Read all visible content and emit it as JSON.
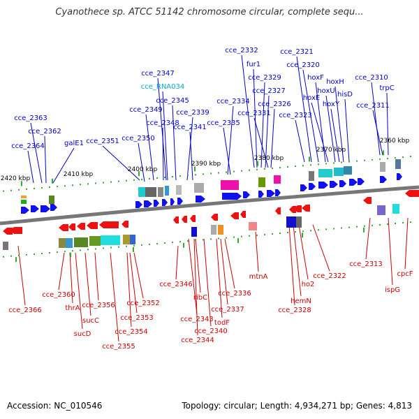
{
  "title": "Cyanothece sp. ATCC 51142 chromosome circular, complete sequ...",
  "footer": {
    "accession": "Accession: NC_010546",
    "summary": "Topology: circular; Length: 4,934,271 bp; Genes: 4,813"
  },
  "colors": {
    "top_label": "#0000cc",
    "rna_label": "#00aacc",
    "bottom_label": "#cc0000",
    "forward_gene": "#1111ee",
    "reverse_gene": "#ee1111",
    "backbone": "#777777",
    "tick": "#33aa33"
  },
  "scale_ticks": [
    {
      "label": "2420 kbp"
    },
    {
      "label": "2410 kbp"
    },
    {
      "label": "2400 kbp"
    },
    {
      "label": "2390 kbp"
    },
    {
      "label": "2380 kbp"
    },
    {
      "label": "2370 kbp"
    },
    {
      "label": "2360 kbp"
    }
  ],
  "top_labels": [
    {
      "text": "cce_2363"
    },
    {
      "text": "cce_2362"
    },
    {
      "text": "cce_2364"
    },
    {
      "text": "galE1"
    },
    {
      "text": "cce_2351"
    },
    {
      "text": "cce_2350"
    },
    {
      "text": "cce_2349"
    },
    {
      "text": "cce_2348"
    },
    {
      "text": "cce_2347"
    },
    {
      "text": "cce_RNA034"
    },
    {
      "text": "cce_2345"
    },
    {
      "text": "cce_2339"
    },
    {
      "text": "cce_2341"
    },
    {
      "text": "cce_2334"
    },
    {
      "text": "cce_2335"
    },
    {
      "text": "cce_2332"
    },
    {
      "text": "fur1"
    },
    {
      "text": "cce_2329"
    },
    {
      "text": "cce_2327"
    },
    {
      "text": "cce_2326"
    },
    {
      "text": "cce_2331"
    },
    {
      "text": "cce_2321"
    },
    {
      "text": "cce_2320"
    },
    {
      "text": "cce_2323"
    },
    {
      "text": "hoxF"
    },
    {
      "text": "hoxE"
    },
    {
      "text": "hoxH"
    },
    {
      "text": "hoxU"
    },
    {
      "text": "hoxY"
    },
    {
      "text": "hisD"
    },
    {
      "text": "cce_2310"
    },
    {
      "text": "trpC"
    },
    {
      "text": "cce_2311"
    }
  ],
  "bottom_labels": [
    {
      "text": "cce_2366"
    },
    {
      "text": "cce_2360"
    },
    {
      "text": "thrA"
    },
    {
      "text": "sucD"
    },
    {
      "text": "sucC"
    },
    {
      "text": "cce_2356"
    },
    {
      "text": "cce_2355"
    },
    {
      "text": "cce_2354"
    },
    {
      "text": "cce_2353"
    },
    {
      "text": "cce_2352"
    },
    {
      "text": "cce_2346"
    },
    {
      "text": "cce_2343"
    },
    {
      "text": "cce_2344"
    },
    {
      "text": "ribC"
    },
    {
      "text": "cce_2340"
    },
    {
      "text": "todF"
    },
    {
      "text": "cce_2337"
    },
    {
      "text": "cce_2336"
    },
    {
      "text": "mtnA"
    },
    {
      "text": "cce_2328"
    },
    {
      "text": "hemN"
    },
    {
      "text": "ho2"
    },
    {
      "text": "cce_2322"
    },
    {
      "text": "cce_2313"
    },
    {
      "text": "ispG"
    },
    {
      "text": "cpcF"
    }
  ]
}
